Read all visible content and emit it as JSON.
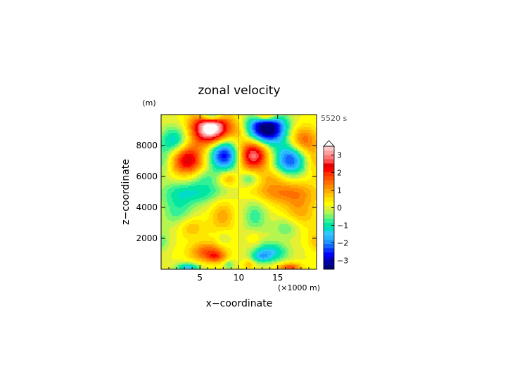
{
  "chart_data": {
    "type": "heatmap",
    "title": "zonal velocity",
    "xlabel": "x−coordinate",
    "ylabel": "z−coordinate",
    "x_unit": "(×1000 m)",
    "y_unit": "(m)",
    "time_label": "5520 s",
    "xlim": [
      0,
      20
    ],
    "ylim": [
      0,
      10000
    ],
    "x_ticks": [
      "5",
      "10",
      "15"
    ],
    "x_tick_values": [
      5,
      10,
      15
    ],
    "y_ticks": [
      "2000",
      "4000",
      "6000",
      "8000"
    ],
    "y_tick_values": [
      2000,
      4000,
      6000,
      8000
    ],
    "colorbar": {
      "levels": [
        -3.5,
        -3.25,
        -3,
        -2.75,
        -2.5,
        -2.25,
        -2,
        -1.75,
        -1.5,
        -1.25,
        -1,
        -0.75,
        -0.5,
        -0.25,
        0,
        0.25,
        0.5,
        0.75,
        1,
        1.25,
        1.5,
        1.75,
        2,
        2.25,
        2.5,
        2.75,
        3,
        3.25,
        3.5
      ],
      "tick_labels": [
        "3",
        "2",
        "1",
        "0",
        "−1",
        "−2",
        "−3"
      ],
      "tick_values": [
        3,
        2,
        1,
        0,
        -1,
        -2,
        -3
      ],
      "extend": "max"
    },
    "blobs": [
      {
        "x": 6.4,
        "z": 9100,
        "sx": 1.7,
        "sz": 700,
        "v": 4.2
      },
      {
        "x": 13.6,
        "z": 9100,
        "sx": 1.7,
        "sz": 700,
        "v": -4.2
      },
      {
        "x": 6.5,
        "z": 9900,
        "sx": 1.0,
        "sz": 250,
        "v": -2.5
      },
      {
        "x": 13.5,
        "z": 9900,
        "sx": 1.0,
        "sz": 250,
        "v": 2.5
      },
      {
        "x": 1.8,
        "z": 8300,
        "sx": 1.3,
        "sz": 650,
        "v": -1.6
      },
      {
        "x": 18.2,
        "z": 8300,
        "sx": 1.3,
        "sz": 650,
        "v": 1.6
      },
      {
        "x": 10,
        "z": 8900,
        "sx": 0.8,
        "sz": 600,
        "v": 0.6
      },
      {
        "x": 3.4,
        "z": 7100,
        "sx": 1.4,
        "sz": 700,
        "v": 2.6
      },
      {
        "x": 8.1,
        "z": 7400,
        "sx": 1.3,
        "sz": 700,
        "v": -3.0
      },
      {
        "x": 11.9,
        "z": 7400,
        "sx": 1.3,
        "sz": 700,
        "v": 3.0
      },
      {
        "x": 16.6,
        "z": 7100,
        "sx": 1.4,
        "sz": 700,
        "v": -2.6
      },
      {
        "x": 0.3,
        "z": 7000,
        "sx": 0.7,
        "sz": 700,
        "v": -0.7
      },
      {
        "x": 19.7,
        "z": 7000,
        "sx": 0.7,
        "sz": 700,
        "v": 0.7
      },
      {
        "x": 5.6,
        "z": 6000,
        "sx": 1.3,
        "sz": 400,
        "v": -0.6
      },
      {
        "x": 14.4,
        "z": 6000,
        "sx": 1.3,
        "sz": 400,
        "v": 0.6
      },
      {
        "x": 8.6,
        "z": 5850,
        "sx": 0.9,
        "sz": 350,
        "v": 1.0
      },
      {
        "x": 11.4,
        "z": 5850,
        "sx": 0.9,
        "sz": 350,
        "v": -1.0
      },
      {
        "x": 4.7,
        "z": 5000,
        "sx": 3.2,
        "sz": 550,
        "v": -1.2
      },
      {
        "x": 15.3,
        "z": 5000,
        "sx": 3.2,
        "sz": 550,
        "v": 1.2
      },
      {
        "x": 5.2,
        "z": 3950,
        "sx": 0.8,
        "sz": 400,
        "v": 0.0
      },
      {
        "x": 14.8,
        "z": 3950,
        "sx": 0.8,
        "sz": 400,
        "v": 0.0
      },
      {
        "x": 2.2,
        "z": 3700,
        "sx": 1.5,
        "sz": 900,
        "v": -0.9
      },
      {
        "x": 17.8,
        "z": 3700,
        "sx": 1.5,
        "sz": 900,
        "v": 0.9
      },
      {
        "x": 7.9,
        "z": 3450,
        "sx": 1.1,
        "sz": 900,
        "v": 0.9
      },
      {
        "x": 12.1,
        "z": 3450,
        "sx": 1.1,
        "sz": 900,
        "v": -0.9
      },
      {
        "x": 3.7,
        "z": 2700,
        "sx": 1.3,
        "sz": 500,
        "v": 0.9
      },
      {
        "x": 16.3,
        "z": 2700,
        "sx": 1.3,
        "sz": 500,
        "v": -0.9
      },
      {
        "x": 8.0,
        "z": 2000,
        "sx": 0.7,
        "sz": 450,
        "v": -0.5
      },
      {
        "x": 12.0,
        "z": 2000,
        "sx": 0.7,
        "sz": 450,
        "v": 0.5
      },
      {
        "x": 6.0,
        "z": 1100,
        "sx": 1.6,
        "sz": 450,
        "v": 1.6
      },
      {
        "x": 14.0,
        "z": 1100,
        "sx": 1.6,
        "sz": 450,
        "v": -1.6
      },
      {
        "x": 7.1,
        "z": 800,
        "sx": 0.8,
        "sz": 250,
        "v": 1.0
      },
      {
        "x": 12.9,
        "z": 800,
        "sx": 0.8,
        "sz": 250,
        "v": -1.0
      },
      {
        "x": 3.5,
        "z": 100,
        "sx": 1.1,
        "sz": 220,
        "v": -1.7
      },
      {
        "x": 16.5,
        "z": 100,
        "sx": 1.1,
        "sz": 220,
        "v": 1.7
      },
      {
        "x": 8.7,
        "z": 300,
        "sx": 0.5,
        "sz": 200,
        "v": -0.8
      },
      {
        "x": 11.3,
        "z": 300,
        "sx": 0.5,
        "sz": 200,
        "v": 0.8
      },
      {
        "x": 0.2,
        "z": 1800,
        "sx": 0.6,
        "sz": 500,
        "v": -0.6
      },
      {
        "x": 19.8,
        "z": 1800,
        "sx": 0.6,
        "sz": 500,
        "v": 0.6
      }
    ],
    "colors": [
      "#000078",
      "#0000a0",
      "#0000c8",
      "#0000ff",
      "#0a32ff",
      "#1464ff",
      "#1e96ff",
      "#28b4ff",
      "#32c8ff",
      "#00dcc8",
      "#00e6a0",
      "#32f096",
      "#78f56e",
      "#b4f550",
      "#e6f032",
      "#ffff00",
      "#ffe600",
      "#ffc800",
      "#ffaa00",
      "#ff8c00",
      "#ff6e00",
      "#ff5000",
      "#ff3200",
      "#ff0000",
      "#e60000",
      "#ff4b4b",
      "#ff7878",
      "#ffa0a0",
      "#ffc8c8",
      "#ffffff"
    ]
  }
}
